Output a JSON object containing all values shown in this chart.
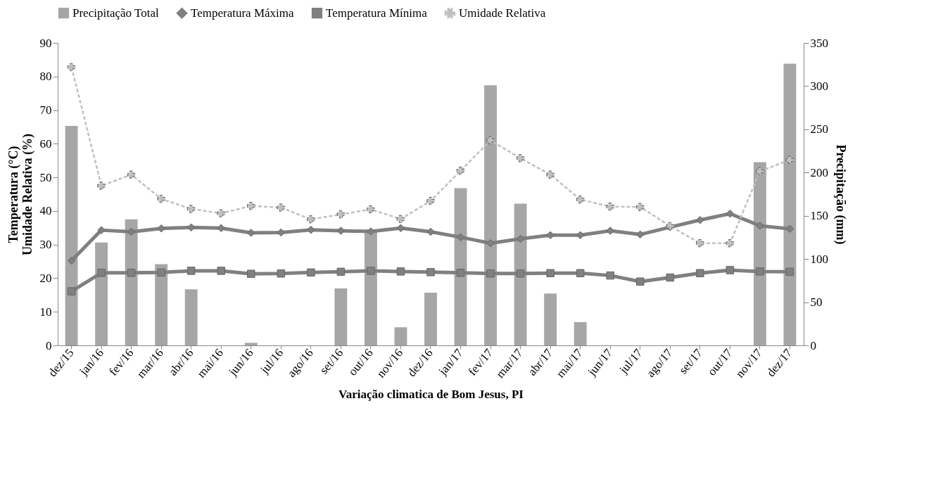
{
  "chart_data": {
    "type": "line",
    "xlabel": "Variação climatica de Bom Jesus, PI",
    "ylabel": "Temperatura (°C)\nUmidade Relativa (%)",
    "y2label": "Precipitação (mm)",
    "categories": [
      "dez/15",
      "jan/16",
      "fev/16",
      "mar/16",
      "abr/16",
      "mai/16",
      "jun/16",
      "jul/16",
      "ago/16",
      "set/16",
      "out/16",
      "nov/16",
      "dez/16",
      "jan/17",
      "fev/17",
      "mar/17",
      "abr/17",
      "mai/17",
      "jun/17",
      "jul/17",
      "ago/17",
      "set/17",
      "out/17",
      "nov/17",
      "dez/17"
    ],
    "series": [
      {
        "name": "Precipitação Total",
        "type": "bar",
        "axis": "y2",
        "color": "#a6a6a6",
        "values": [
          254,
          119,
          146,
          94,
          65,
          0,
          3,
          0,
          0,
          66,
          134,
          21,
          61,
          182,
          301,
          164,
          60,
          27,
          0,
          0,
          0,
          0,
          0,
          212,
          326
        ]
      },
      {
        "name": "Temperatura Máxima",
        "color": "#808080",
        "marker": "diamond",
        "line_style": "solid",
        "values": [
          25.2,
          34.3,
          33.8,
          34.8,
          35.1,
          34.9,
          33.5,
          33.6,
          34.4,
          34.1,
          33.9,
          34.9,
          33.8,
          32.2,
          30.4,
          31.7,
          32.8,
          32.8,
          34.1,
          33.0,
          35.2,
          37.3,
          39.2,
          35.6,
          34.7
        ]
      },
      {
        "name": "Temperatura Mínima",
        "color": "#808080",
        "marker": "square",
        "line_style": "solid",
        "values": [
          16.1,
          21.6,
          21.6,
          21.7,
          22.2,
          22.2,
          21.3,
          21.4,
          21.7,
          21.9,
          22.2,
          22.0,
          21.8,
          21.6,
          21.4,
          21.4,
          21.5,
          21.5,
          20.8,
          19.0,
          20.2,
          21.5,
          22.4,
          22.0,
          21.9
        ]
      },
      {
        "name": "Umidade Relativa",
        "color": "#c0c0c0",
        "marker": "cross",
        "line_style": "dashed",
        "values": [
          82.8,
          47.5,
          50.8,
          43.6,
          40.6,
          39.3,
          41.5,
          41.0,
          37.5,
          39.0,
          40.5,
          37.6,
          43.0,
          52.0,
          61.0,
          55.7,
          50.8,
          43.4,
          41.3,
          41.2,
          35.5,
          30.4,
          30.4,
          51.8,
          55.2
        ]
      }
    ],
    "ylim": [
      0,
      90
    ],
    "yticks": [
      0,
      10,
      20,
      30,
      40,
      50,
      60,
      70,
      80,
      90
    ],
    "y2lim": [
      0,
      350
    ],
    "y2ticks": [
      0,
      50,
      100,
      150,
      200,
      250,
      300,
      350
    ],
    "legend": "top",
    "grid": false
  }
}
